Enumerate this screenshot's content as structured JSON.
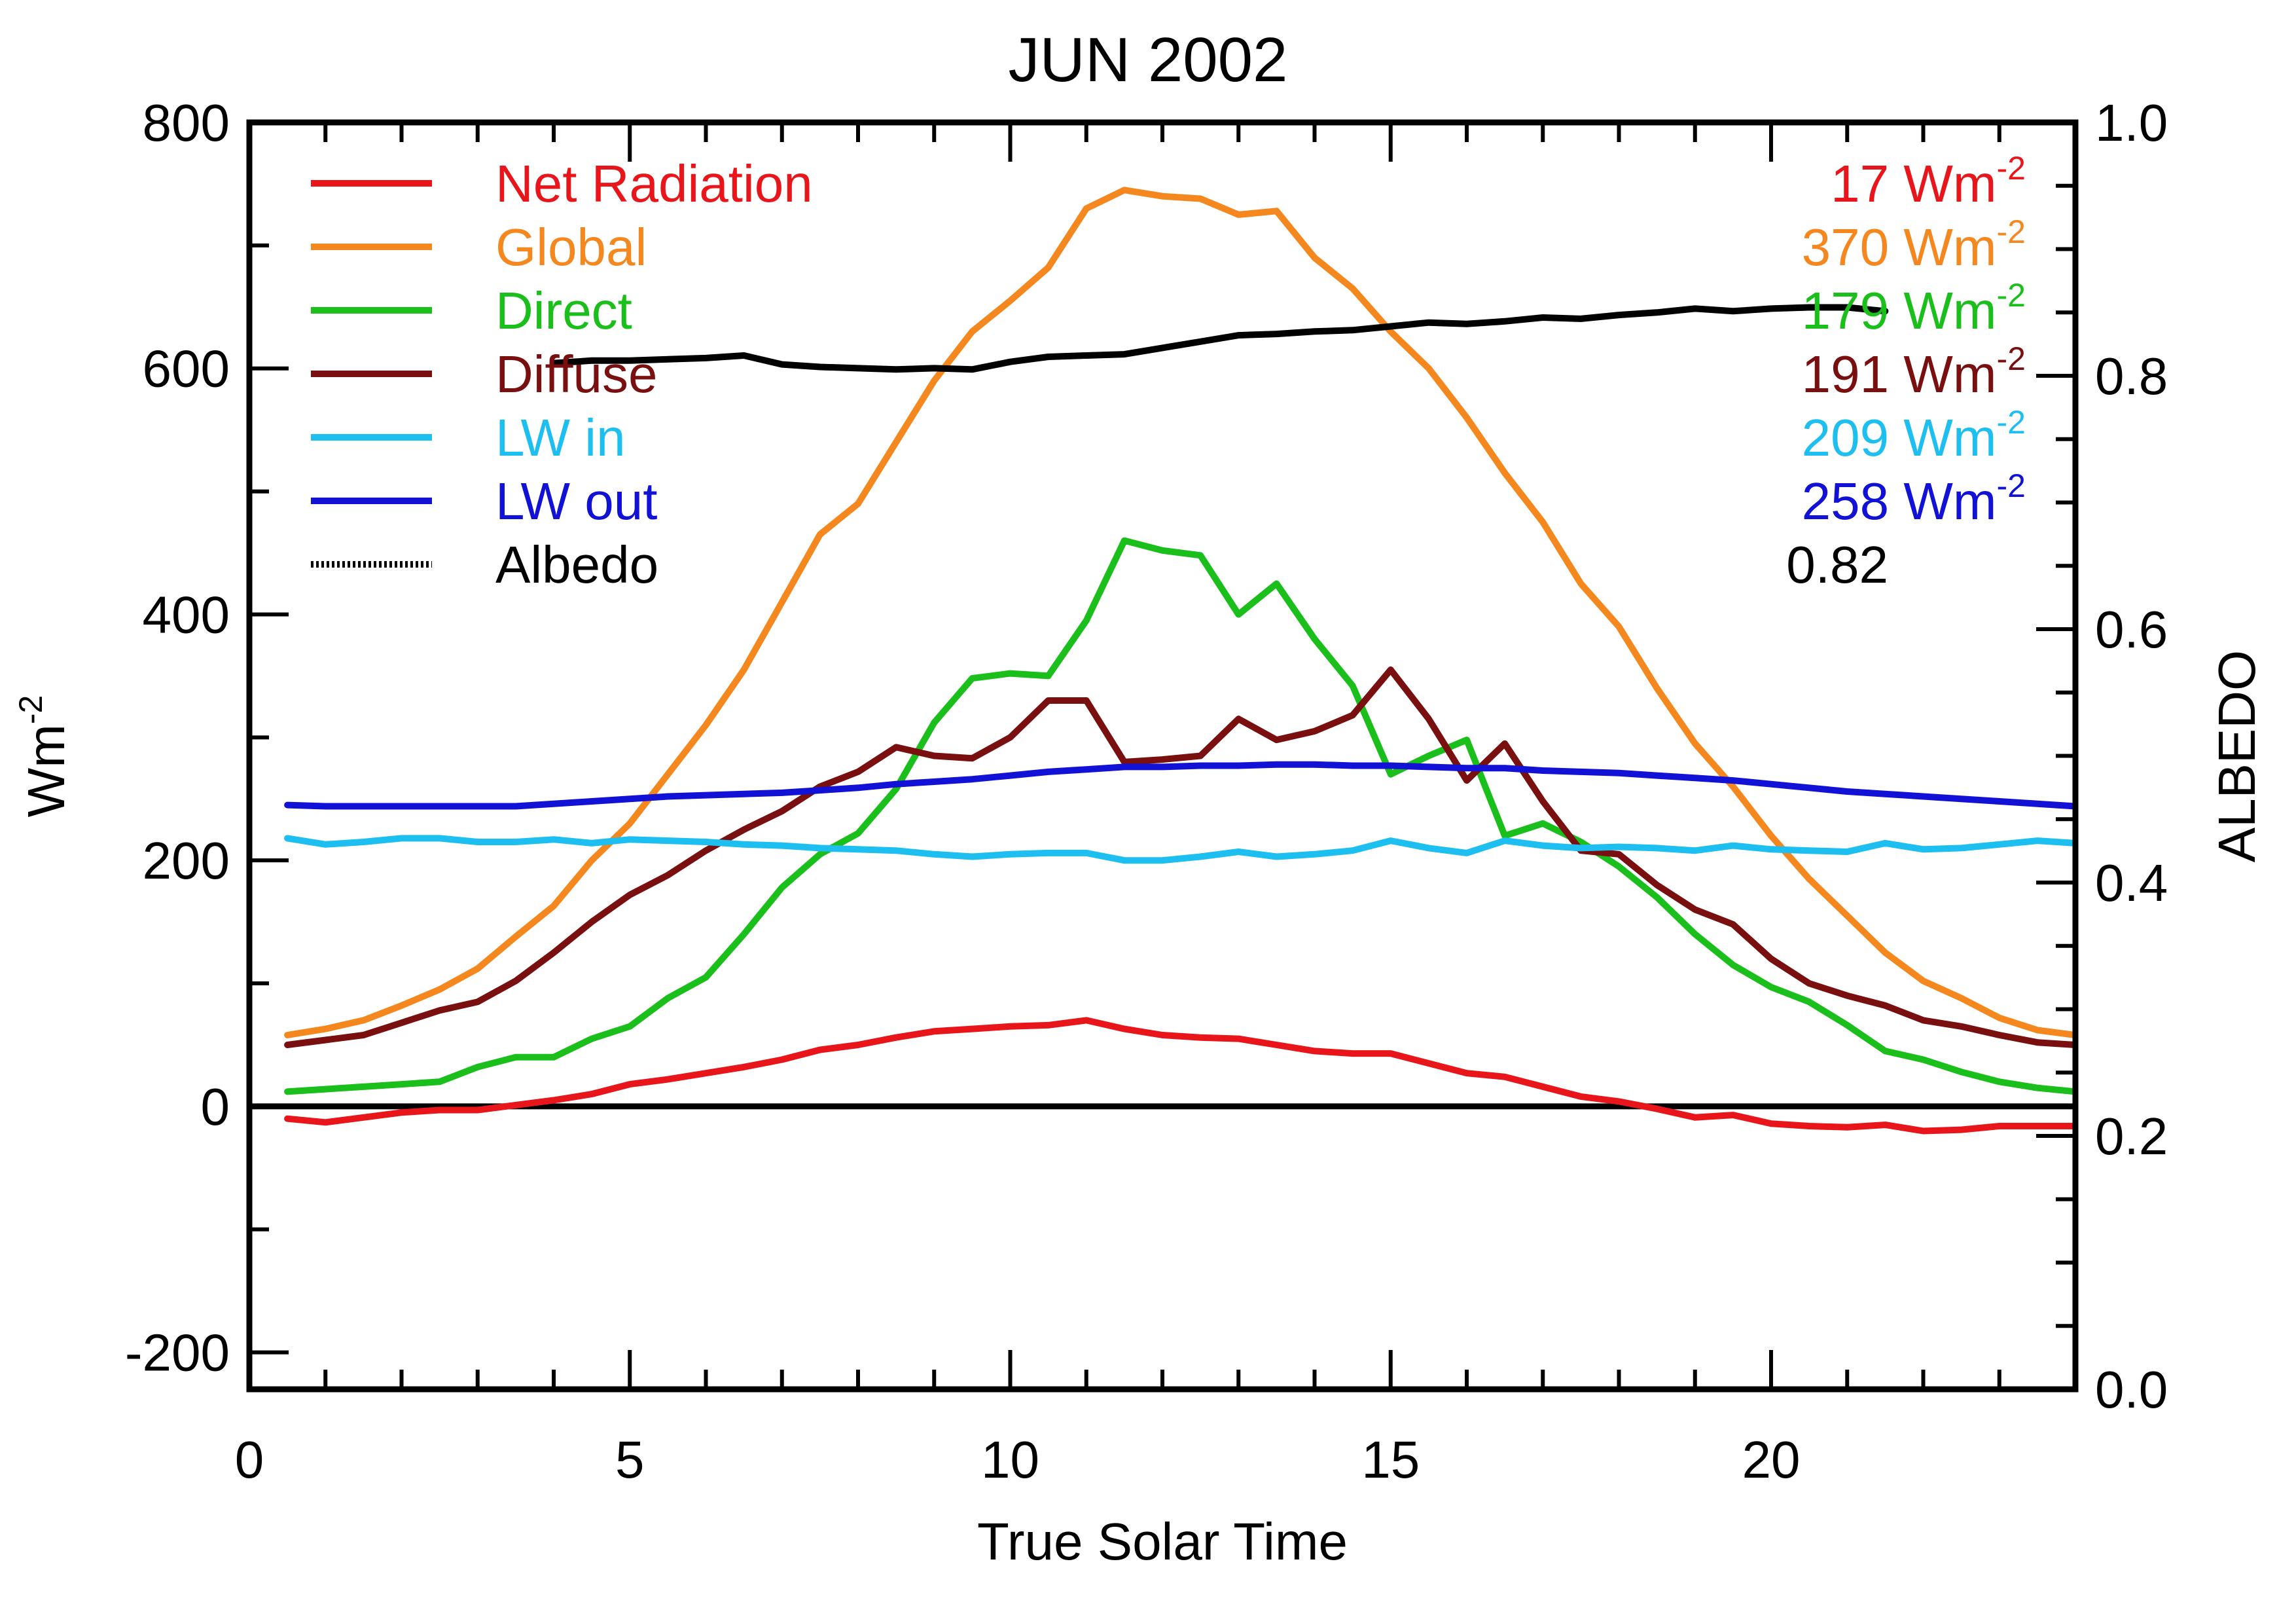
{
  "chart_data": {
    "type": "line",
    "title": "JUN 2002",
    "xlabel": "True Solar Time",
    "ylabel": "Wm",
    "ylabel_sup": "-2",
    "y2label": "ALBEDO",
    "xlim": [
      0,
      24
    ],
    "ylim": [
      -230,
      800
    ],
    "y2lim": [
      0.0,
      1.0
    ],
    "x_ticks": [
      {
        "value": 0,
        "label": "0"
      },
      {
        "value": 5,
        "label": "5"
      },
      {
        "value": 10,
        "label": "10"
      },
      {
        "value": 15,
        "label": "15"
      },
      {
        "value": 20,
        "label": "20"
      }
    ],
    "y_ticks": [
      {
        "value": -200,
        "label": "-200"
      },
      {
        "value": 0,
        "label": "0"
      },
      {
        "value": 200,
        "label": "200"
      },
      {
        "value": 400,
        "label": "400"
      },
      {
        "value": 600,
        "label": "600"
      },
      {
        "value": 800,
        "label": "800"
      }
    ],
    "y2_ticks": [
      {
        "value": 0.0,
        "label": "0.0"
      },
      {
        "value": 0.2,
        "label": "0.2"
      },
      {
        "value": 0.4,
        "label": "0.4"
      },
      {
        "value": 0.6,
        "label": "0.6"
      },
      {
        "value": 0.8,
        "label": "0.8"
      },
      {
        "value": 1.0,
        "label": "1.0"
      }
    ],
    "zero_line": 0,
    "legend_placement": "top, full width",
    "x": [
      0.5,
      1,
      1.5,
      2,
      2.5,
      3,
      3.5,
      4,
      4.5,
      5,
      5.5,
      6,
      6.5,
      7,
      7.5,
      8,
      8.5,
      9,
      9.5,
      10,
      10.5,
      11,
      11.5,
      12,
      12.5,
      13,
      13.5,
      14,
      14.5,
      15,
      15.5,
      16,
      16.5,
      17,
      17.5,
      18,
      18.5,
      19,
      19.5,
      20,
      20.5,
      21,
      21.5,
      22,
      22.5,
      23,
      23.5,
      24
    ],
    "series": [
      {
        "name": "Net Radiation",
        "color": "#e8161b",
        "axis": "left",
        "value_label": "17 Wm",
        "value_sup": "-2",
        "values": [
          -10,
          -13,
          -9,
          -5,
          -3,
          -3,
          1,
          5,
          10,
          18,
          22,
          27,
          32,
          38,
          46,
          50,
          56,
          61,
          63,
          65,
          66,
          70,
          63,
          58,
          56,
          55,
          50,
          45,
          43,
          43,
          35,
          27,
          24,
          16,
          8,
          4,
          -2,
          -9,
          -7,
          -14,
          -16,
          -17,
          -15,
          -20,
          -19,
          -16,
          -16,
          -16
        ]
      },
      {
        "name": "Global",
        "color": "#f5871f",
        "axis": "left",
        "value_label": "370 Wm",
        "value_sup": "-2",
        "values": [
          58,
          63,
          70,
          82,
          95,
          112,
          138,
          163,
          200,
          230,
          270,
          310,
          355,
          410,
          465,
          490,
          540,
          590,
          630,
          655,
          682,
          730,
          745,
          740,
          738,
          725,
          728,
          690,
          665,
          630,
          600,
          560,
          515,
          475,
          425,
          390,
          340,
          295,
          260,
          220,
          185,
          155,
          125,
          102,
          88,
          72,
          62,
          58
        ]
      },
      {
        "name": "Direct",
        "color": "#1bbf1b",
        "axis": "left",
        "value_label": "179 Wm",
        "value_sup": "-2",
        "values": [
          12,
          14,
          16,
          18,
          20,
          32,
          40,
          40,
          55,
          65,
          88,
          105,
          140,
          178,
          205,
          222,
          258,
          312,
          348,
          352,
          350,
          395,
          460,
          452,
          448,
          400,
          425,
          380,
          342,
          270,
          285,
          298,
          220,
          230,
          215,
          195,
          170,
          140,
          115,
          97,
          85,
          66,
          45,
          38,
          28,
          20,
          15,
          12
        ]
      },
      {
        "name": "Diffuse",
        "color": "#7a0f0f",
        "axis": "left",
        "value_label": "191 Wm",
        "value_sup": "-2",
        "values": [
          50,
          54,
          58,
          68,
          78,
          85,
          102,
          125,
          150,
          172,
          188,
          208,
          225,
          240,
          260,
          272,
          292,
          285,
          283,
          300,
          330,
          330,
          280,
          282,
          285,
          315,
          298,
          305,
          318,
          355,
          315,
          265,
          295,
          248,
          208,
          205,
          180,
          160,
          148,
          120,
          100,
          90,
          82,
          70,
          65,
          58,
          52,
          50
        ]
      },
      {
        "name": "LW in",
        "color": "#1cbff0",
        "axis": "left",
        "value_label": "209 Wm",
        "value_sup": "-2",
        "values": [
          218,
          213,
          215,
          218,
          218,
          215,
          215,
          217,
          214,
          217,
          216,
          215,
          213,
          212,
          210,
          209,
          208,
          205,
          203,
          205,
          206,
          206,
          200,
          200,
          203,
          207,
          203,
          205,
          208,
          216,
          210,
          206,
          216,
          212,
          210,
          211,
          210,
          208,
          212,
          209,
          208,
          207,
          214,
          209,
          210,
          213,
          216,
          214
        ]
      },
      {
        "name": "LW out",
        "color": "#1212d6",
        "axis": "left",
        "value_label": "258 Wm",
        "value_sup": "-2",
        "values": [
          245,
          244,
          244,
          244,
          244,
          244,
          244,
          246,
          248,
          250,
          252,
          253,
          254,
          255,
          257,
          259,
          262,
          264,
          266,
          269,
          272,
          274,
          276,
          276,
          277,
          277,
          278,
          278,
          277,
          277,
          276,
          275,
          275,
          273,
          272,
          271,
          269,
          267,
          265,
          262,
          259,
          256,
          254,
          252,
          250,
          248,
          246,
          244
        ]
      },
      {
        "name": "Albedo",
        "color": "#000000",
        "axis": "right",
        "style": "dotted",
        "value_label": "0.82",
        "value_sup": "",
        "x": [
          4,
          4.5,
          5,
          5.5,
          6,
          6.5,
          7,
          7.5,
          8,
          8.5,
          9,
          9.5,
          10,
          10.5,
          11,
          11.5,
          12,
          12.5,
          13,
          13.5,
          14,
          14.5,
          15,
          15.5,
          16,
          16.5,
          17,
          17.5,
          18,
          18.5,
          19,
          19.5,
          20,
          20.5,
          21,
          21.5
        ],
        "values": [
          0.81,
          0.812,
          0.812,
          0.813,
          0.814,
          0.816,
          0.809,
          0.807,
          0.806,
          0.805,
          0.806,
          0.805,
          0.811,
          0.815,
          0.816,
          0.817,
          0.822,
          0.827,
          0.832,
          0.833,
          0.835,
          0.836,
          0.839,
          0.842,
          0.841,
          0.843,
          0.846,
          0.845,
          0.848,
          0.85,
          0.853,
          0.851,
          0.853,
          0.854,
          0.854,
          0.851
        ]
      }
    ]
  }
}
